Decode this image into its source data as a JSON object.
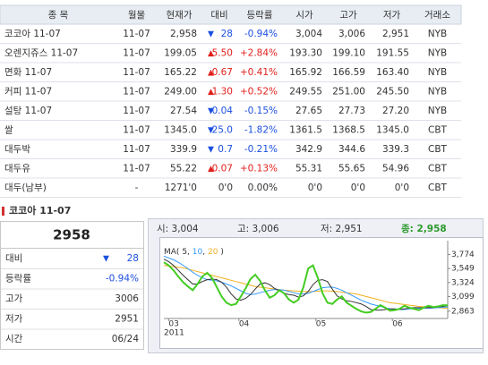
{
  "table": {
    "header": [
      "종 목",
      "월물",
      "현재가",
      "대비",
      "등락률",
      "시가",
      "고가",
      "저가",
      "거래소"
    ],
    "rows": [
      {
        "name": "코코아 11-07",
        "month": "11-07",
        "price": "2,958",
        "sign": "▼",
        "change": "28",
        "rate": "-0.94%",
        "open": "3,004",
        "high": "3,006",
        "low": "2,951",
        "exchange": "NYB"
      },
      {
        "name": "오렌지쥬스 11-07",
        "month": "11-07",
        "price": "199.05",
        "sign": "▲",
        "change": "5.50",
        "rate": "+2.84%",
        "open": "193.30",
        "high": "199.10",
        "low": "191.55",
        "exchange": "NYB"
      },
      {
        "name": "면화 11-07",
        "month": "11-07",
        "price": "165.22",
        "sign": "▲",
        "change": "0.67",
        "rate": "+0.41%",
        "open": "165.92",
        "high": "166.59",
        "low": "163.40",
        "exchange": "NYB"
      },
      {
        "name": "커피 11-07",
        "month": "11-07",
        "price": "249.00",
        "sign": "▲",
        "change": "1.30",
        "rate": "+0.52%",
        "open": "249.55",
        "high": "251.00",
        "low": "245.50",
        "exchange": "NYB"
      },
      {
        "name": "설탕 11-07",
        "month": "11-07",
        "price": "27.54",
        "sign": "▼",
        "change": "0.04",
        "rate": "-0.15%",
        "open": "27.65",
        "high": "27.73",
        "low": "27.20",
        "exchange": "NYB"
      },
      {
        "name": "쌀",
        "month": "11-07",
        "price": "1345.0",
        "sign": "▼",
        "change": "25.0",
        "rate": "-1.82%",
        "open": "1361.5",
        "high": "1368.5",
        "low": "1345.0",
        "exchange": "CBT"
      },
      {
        "name": "대두박",
        "month": "11-07",
        "price": "339.9",
        "sign": "▼",
        "change": "0.7",
        "rate": "-0.21%",
        "open": "342.9",
        "high": "344.6",
        "low": "339.3",
        "exchange": "CBT"
      },
      {
        "name": "대두유",
        "month": "11-07",
        "price": "55.22",
        "sign": "▲",
        "change": "0.07",
        "rate": "+0.13%",
        "open": "55.31",
        "high": "55.65",
        "low": "54.96",
        "exchange": "CBT"
      },
      {
        "name": "대두(남부)",
        "month": "-",
        "price": "1271'0",
        "change": "0'0",
        "rate": "0.00%",
        "open": "0'0",
        "high": "0'0",
        "low": "0'0",
        "exchange": "CBT"
      }
    ]
  },
  "detail": {
    "title": "코코아 11-07",
    "price": "2958",
    "rows": [
      {
        "label": "대비",
        "sign": "▼",
        "value": "28"
      },
      {
        "label": "등락률",
        "value": "-0.94%"
      },
      {
        "label": "고가",
        "value": "3006"
      },
      {
        "label": "저가",
        "value": "2951"
      },
      {
        "label": "시간",
        "value": "06/24"
      }
    ]
  },
  "chart_header": [
    "시: 3,004",
    "고: 3,006",
    "저: 2,951",
    "종: 2,958"
  ],
  "chart_data": {
    "type": "line",
    "legend": {
      "prefix": "MA(",
      "separator": ",",
      "suffix": ")"
    },
    "xlim": [
      0,
      59
    ],
    "xticks": [
      {
        "value": 1,
        "label": "03"
      },
      {
        "value": 15.6,
        "label": "04"
      },
      {
        "value": 31.6,
        "label": "05"
      },
      {
        "value": 47.5,
        "label": "06"
      }
    ],
    "year_label": "2011",
    "ylim": [
      2760,
      3940
    ],
    "yticks": [
      {
        "value": 3774,
        "label": "3,774"
      },
      {
        "value": 3549,
        "label": "3,549"
      },
      {
        "value": 3324,
        "label": "3,324"
      },
      {
        "value": 3099,
        "label": "3,099"
      },
      {
        "value": 2863,
        "label": "2,863"
      }
    ],
    "series": [
      {
        "color": "#44cc22",
        "values": [
          3650,
          3600,
          3520,
          3420,
          3330,
          3260,
          3200,
          3300,
          3420,
          3480,
          3400,
          3250,
          3100,
          3000,
          2960,
          2980,
          3100,
          3230,
          3380,
          3450,
          3350,
          3200,
          3080,
          3120,
          3200,
          3150,
          3050,
          3000,
          3050,
          3250,
          3550,
          3600,
          3400,
          3150,
          3000,
          2980,
          3050,
          3100,
          3000,
          2950,
          2900,
          2860,
          2840,
          2850,
          2900,
          2960,
          2920,
          2870,
          2880,
          2900,
          2950,
          2920,
          2900,
          2880,
          2920,
          2950,
          2930,
          2940,
          2960,
          2958
        ]
      },
      {
        "name": "5",
        "color": "#333333",
        "values": [
          3700,
          3660,
          3600,
          3520,
          3440,
          3370,
          3300,
          3300,
          3340,
          3370,
          3380,
          3370,
          3330,
          3250,
          3140,
          3060,
          3040,
          3070,
          3130,
          3220,
          3300,
          3320,
          3290,
          3230,
          3190,
          3150,
          3130,
          3120,
          3090,
          3110,
          3180,
          3290,
          3360,
          3370,
          3340,
          3220,
          3110,
          3060,
          3030,
          3020,
          3000,
          2980,
          2940,
          2890,
          2880,
          2880,
          2890,
          2900,
          2900,
          2890,
          2900,
          2910,
          2920,
          2920,
          2920,
          2920,
          2920,
          2930,
          2940,
          2950
        ]
      },
      {
        "name": "10",
        "color": "#3399ff",
        "values": [
          3750,
          3720,
          3690,
          3650,
          3600,
          3550,
          3490,
          3440,
          3400,
          3370,
          3360,
          3350,
          3330,
          3300,
          3270,
          3230,
          3190,
          3150,
          3130,
          3140,
          3160,
          3180,
          3200,
          3210,
          3210,
          3200,
          3180,
          3160,
          3140,
          3140,
          3150,
          3180,
          3210,
          3240,
          3250,
          3250,
          3230,
          3200,
          3160,
          3120,
          3080,
          3040,
          3010,
          2980,
          2960,
          2940,
          2920,
          2900,
          2890,
          2890,
          2890,
          2900,
          2900,
          2910,
          2910,
          2910,
          2915,
          2920,
          2925,
          2930
        ]
      },
      {
        "name": "20",
        "color": "#f0b020",
        "values": [
          3600,
          3590,
          3580,
          3570,
          3560,
          3540,
          3520,
          3500,
          3480,
          3460,
          3440,
          3420,
          3400,
          3380,
          3360,
          3340,
          3320,
          3300,
          3280,
          3260,
          3250,
          3240,
          3230,
          3220,
          3210,
          3200,
          3195,
          3190,
          3185,
          3180,
          3180,
          3180,
          3185,
          3190,
          3190,
          3185,
          3180,
          3170,
          3160,
          3150,
          3140,
          3120,
          3100,
          3080,
          3060,
          3040,
          3020,
          3000,
          2990,
          2980,
          2970,
          2960,
          2950,
          2940,
          2935,
          2930,
          2925,
          2920,
          2915,
          2910
        ]
      }
    ]
  }
}
